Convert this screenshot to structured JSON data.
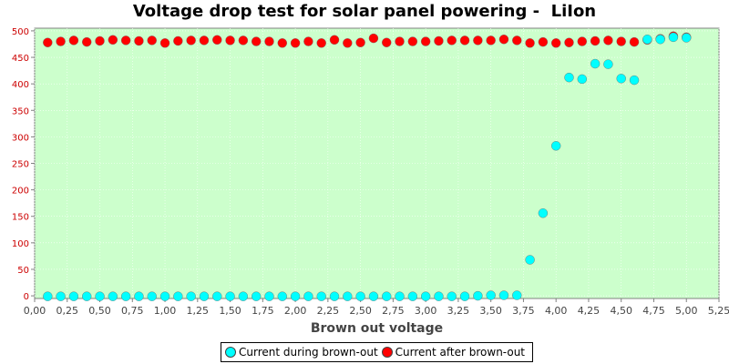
{
  "chart_data": {
    "type": "scatter",
    "title": "Voltage drop test for solar panel powering -  LiIon",
    "xlabel": "Brown out voltage",
    "ylabel": "",
    "xlim": [
      0,
      5.25
    ],
    "ylim": [
      -5,
      505
    ],
    "x_ticks": [
      "0,00",
      "0,25",
      "0,50",
      "0,75",
      "1,00",
      "1,25",
      "1,50",
      "1,75",
      "2,00",
      "2,25",
      "2,50",
      "2,75",
      "3,00",
      "3,25",
      "3,50",
      "3,75",
      "4,00",
      "4,25",
      "4,50",
      "4,75",
      "5,00",
      "5,25"
    ],
    "y_ticks": [
      "0",
      "50",
      "100",
      "150",
      "200",
      "250",
      "300",
      "350",
      "400",
      "450",
      "500"
    ],
    "grid": true,
    "legend_position": "bottom",
    "colors": {
      "plot_background": "#ccffcc",
      "y_tick_labels": "#cc0000",
      "series_during": "#00ffff",
      "series_after": "#ff0000"
    },
    "series": [
      {
        "name": "Current during brown-out",
        "color": "#00ffff",
        "points": [
          [
            0.1,
            -1
          ],
          [
            0.2,
            -1
          ],
          [
            0.3,
            -1
          ],
          [
            0.4,
            -1
          ],
          [
            0.5,
            -1
          ],
          [
            0.6,
            -1
          ],
          [
            0.7,
            -1
          ],
          [
            0.8,
            -1
          ],
          [
            0.9,
            -1
          ],
          [
            1.0,
            -1
          ],
          [
            1.1,
            -1
          ],
          [
            1.2,
            -1
          ],
          [
            1.3,
            -1
          ],
          [
            1.4,
            -1
          ],
          [
            1.5,
            -1
          ],
          [
            1.6,
            -1
          ],
          [
            1.7,
            -1
          ],
          [
            1.8,
            -1
          ],
          [
            1.9,
            -1
          ],
          [
            2.0,
            -1
          ],
          [
            2.1,
            -1
          ],
          [
            2.2,
            -1
          ],
          [
            2.3,
            -1
          ],
          [
            2.4,
            -1
          ],
          [
            2.5,
            -1
          ],
          [
            2.6,
            -1
          ],
          [
            2.7,
            -1
          ],
          [
            2.8,
            -1
          ],
          [
            2.9,
            -1
          ],
          [
            3.0,
            -1
          ],
          [
            3.1,
            -1
          ],
          [
            3.2,
            -1
          ],
          [
            3.3,
            -1
          ],
          [
            3.4,
            0
          ],
          [
            3.5,
            1
          ],
          [
            3.6,
            1
          ],
          [
            3.7,
            1
          ],
          [
            3.8,
            68
          ],
          [
            3.9,
            156
          ],
          [
            4.0,
            283
          ],
          [
            4.1,
            412
          ],
          [
            4.2,
            409
          ],
          [
            4.3,
            438
          ],
          [
            4.4,
            437
          ],
          [
            4.5,
            410
          ],
          [
            4.6,
            407
          ],
          [
            4.7,
            484
          ],
          [
            4.8,
            484
          ],
          [
            4.9,
            488
          ],
          [
            5.0,
            487
          ]
        ]
      },
      {
        "name": "Current after brown-out",
        "color": "#ff0000",
        "points": [
          [
            0.1,
            478
          ],
          [
            0.2,
            480
          ],
          [
            0.3,
            482
          ],
          [
            0.4,
            479
          ],
          [
            0.5,
            481
          ],
          [
            0.6,
            483
          ],
          [
            0.7,
            482
          ],
          [
            0.8,
            481
          ],
          [
            0.9,
            482
          ],
          [
            1.0,
            477
          ],
          [
            1.1,
            481
          ],
          [
            1.2,
            482
          ],
          [
            1.3,
            482
          ],
          [
            1.4,
            483
          ],
          [
            1.5,
            482
          ],
          [
            1.6,
            482
          ],
          [
            1.7,
            480
          ],
          [
            1.8,
            480
          ],
          [
            1.9,
            477
          ],
          [
            2.0,
            477
          ],
          [
            2.1,
            480
          ],
          [
            2.2,
            477
          ],
          [
            2.3,
            483
          ],
          [
            2.4,
            477
          ],
          [
            2.5,
            478
          ],
          [
            2.6,
            486
          ],
          [
            2.7,
            478
          ],
          [
            2.8,
            480
          ],
          [
            2.9,
            480
          ],
          [
            3.0,
            480
          ],
          [
            3.1,
            481
          ],
          [
            3.2,
            482
          ],
          [
            3.3,
            482
          ],
          [
            3.4,
            482
          ],
          [
            3.5,
            482
          ],
          [
            3.6,
            484
          ],
          [
            3.7,
            482
          ],
          [
            3.8,
            477
          ],
          [
            3.9,
            479
          ],
          [
            4.0,
            477
          ],
          [
            4.1,
            478
          ],
          [
            4.2,
            480
          ],
          [
            4.3,
            481
          ],
          [
            4.4,
            482
          ],
          [
            4.5,
            480
          ],
          [
            4.6,
            479
          ],
          [
            4.7,
            483
          ],
          [
            4.8,
            485
          ],
          [
            4.9,
            490
          ],
          [
            5.0,
            488
          ]
        ]
      }
    ]
  }
}
